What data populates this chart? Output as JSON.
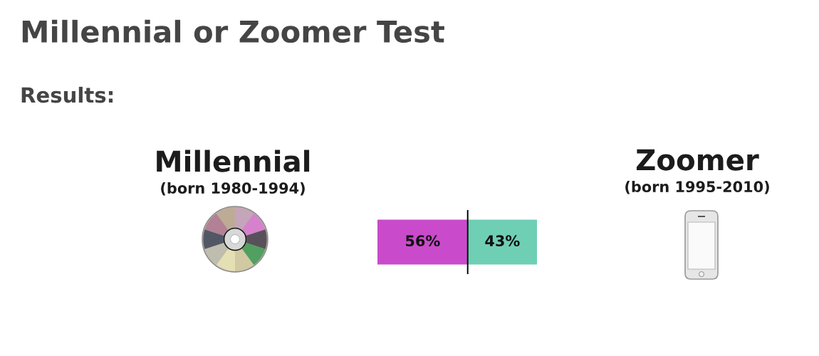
{
  "chart_data": {
    "type": "bar",
    "orientation": "horizontal",
    "stacked": true,
    "title": "Millennial or Zoomer Test",
    "subtitle": "Results:",
    "categories": [
      null
    ],
    "series": [
      {
        "color": "#c94bcb",
        "values": [
          56
        ],
        "value_labels": [
          "56%"
        ]
      },
      {
        "color": "#6fcfb5",
        "values": [
          43
        ],
        "value_labels": [
          "43%"
        ]
      }
    ],
    "xlim": [
      0,
      99
    ],
    "tick_labels": false,
    "ref_lines": [
      {
        "axis": "x",
        "value": 56,
        "color": "#000000"
      }
    ],
    "annotations": [
      "Millennial",
      "(born 1980-1994)",
      "Zoomer",
      "(born 1995-2010)"
    ]
  }
}
